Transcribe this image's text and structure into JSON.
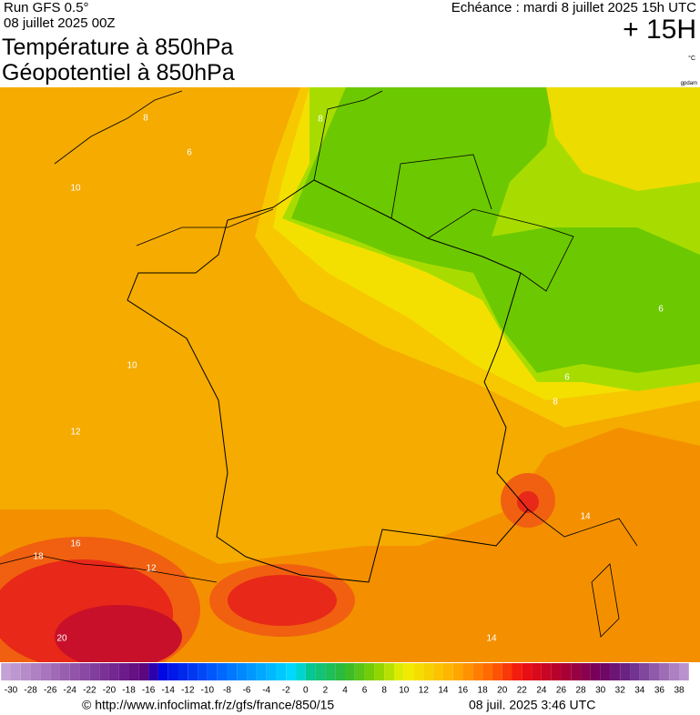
{
  "header": {
    "run": "Run GFS 0.5°",
    "date": "08 juillet 2025 00Z",
    "echeance": "Echéance : mardi 8 juillet 2025 15h UTC",
    "lead": "+ 15H",
    "title1": "Température à 850hPa",
    "title2": "Géopotentiel à 850hPa",
    "unit": "°C",
    "credit": "gpdam"
  },
  "contour_labels": [
    "8",
    "6",
    "10",
    "10",
    "12",
    "16",
    "18",
    "12",
    "20",
    "14",
    "14",
    "6",
    "6",
    "8",
    "8"
  ],
  "colorbar": {
    "ticks": [
      -30,
      -28,
      -26,
      -24,
      -22,
      -20,
      -18,
      -16,
      -14,
      -12,
      -10,
      -8,
      -6,
      -4,
      -2,
      0,
      2,
      4,
      6,
      8,
      10,
      12,
      14,
      16,
      18,
      20,
      22,
      24,
      26,
      28,
      30,
      32,
      34,
      36,
      38
    ]
  },
  "footer": {
    "url": "© http://www.infoclimat.fr/z/gfs/france/850/15",
    "time": "08 juil. 2025  3:46 UTC"
  }
}
